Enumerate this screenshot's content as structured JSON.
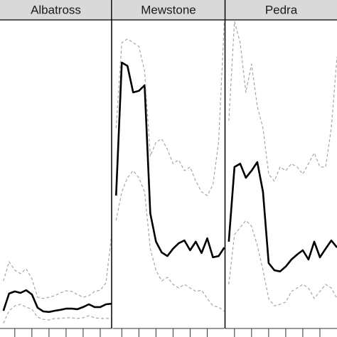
{
  "chart_data": [
    {
      "type": "line",
      "title": "Albatross",
      "x": [
        0,
        1,
        2,
        3,
        4,
        5,
        6,
        7,
        8,
        9,
        10,
        11,
        12,
        13,
        14,
        15,
        16,
        17,
        18,
        19
      ],
      "xlim": [
        -0.6,
        19
      ],
      "xticks": [
        2,
        5,
        8,
        11,
        14,
        17
      ],
      "ylim": [
        0,
        100
      ],
      "series": [
        {
          "color": "#000000",
          "dashed": false,
          "values": [
            5.3,
            10.9,
            11.6,
            11.1,
            12.0,
            10.6,
            6.3,
            5.1,
            4.9,
            5.3,
            5.6,
            6.0,
            6.0,
            5.8,
            6.5,
            7.4,
            6.5,
            6.5,
            7.4,
            7.6
          ]
        },
        {
          "color": "#a6a6a6",
          "dashed": true,
          "values": [
            15.0,
            21.3,
            18.5,
            17.4,
            19.0,
            15.7,
            9.7,
            9.3,
            9.7,
            10.2,
            11.1,
            11.8,
            11.6,
            10.6,
            9.7,
            10.2,
            11.6,
            12.0,
            14.4,
            30.1
          ]
        },
        {
          "color": "#a6a6a6",
          "dashed": true,
          "values": [
            1.2,
            5.3,
            6.9,
            7.4,
            6.5,
            5.8,
            3.2,
            2.5,
            2.3,
            2.8,
            2.8,
            3.0,
            3.0,
            2.8,
            3.0,
            3.7,
            3.0,
            2.8,
            2.8,
            2.8
          ]
        }
      ]
    },
    {
      "type": "line",
      "title": "Mewstone",
      "x": [
        0,
        1,
        2,
        3,
        4,
        5,
        6,
        7,
        8,
        9,
        10,
        11,
        12,
        13,
        14,
        15,
        16,
        17,
        18,
        19
      ],
      "xlim": [
        -0.6,
        19
      ],
      "xticks": [
        1,
        4,
        7,
        10,
        13,
        16
      ],
      "ylim": [
        0,
        100
      ],
      "series": [
        {
          "color": "#000000",
          "dashed": false,
          "values": [
            42.8,
            86.1,
            85.0,
            76.4,
            76.9,
            78.7,
            37.0,
            27.8,
            24.3,
            23.1,
            25.5,
            27.3,
            28.2,
            25.0,
            27.8,
            24.1,
            28.9,
            22.7,
            23.1,
            25.9
          ]
        },
        {
          "color": "#a6a6a6",
          "dashed": true,
          "values": [
            64.8,
            92.6,
            93.8,
            92.6,
            91.4,
            83.3,
            55.6,
            60.2,
            61.3,
            57.9,
            53.2,
            54.4,
            50.9,
            52.1,
            47.5,
            44.0,
            42.8,
            46.3,
            60.2,
            99.5
          ]
        },
        {
          "color": "#a6a6a6",
          "dashed": true,
          "values": [
            34.7,
            44.0,
            48.6,
            50.9,
            48.6,
            44.0,
            25.5,
            18.5,
            15.0,
            16.2,
            13.9,
            12.7,
            13.9,
            12.7,
            11.6,
            12.0,
            9.3,
            6.9,
            6.5,
            5.1
          ]
        }
      ]
    },
    {
      "type": "line",
      "title": "Pedra",
      "x": [
        0,
        1,
        2,
        3,
        4,
        5,
        6,
        7,
        8,
        9,
        10,
        11,
        12,
        13,
        14,
        15,
        16,
        17,
        18,
        19
      ],
      "xlim": [
        -0.6,
        19
      ],
      "xticks": [
        1,
        4,
        7,
        10,
        13,
        16
      ],
      "ylim": [
        0,
        100
      ],
      "series": [
        {
          "color": "#000000",
          "dashed": false,
          "values": [
            27.8,
            52.1,
            53.2,
            48.6,
            50.9,
            53.7,
            44.0,
            20.8,
            18.5,
            18.1,
            19.7,
            22.0,
            23.6,
            25.0,
            22.0,
            27.8,
            22.7,
            25.5,
            28.2,
            25.9
          ]
        },
        {
          "color": "#a6a6a6",
          "dashed": true,
          "values": [
            67.1,
            99.5,
            92.6,
            76.4,
            85.6,
            71.8,
            64.8,
            49.8,
            47.5,
            52.1,
            50.9,
            53.2,
            52.1,
            49.8,
            53.2,
            56.7,
            52.1,
            52.1,
            64.8,
            88.0
          ]
        },
        {
          "color": "#a6a6a6",
          "dashed": true,
          "values": [
            13.9,
            30.1,
            32.4,
            34.7,
            32.9,
            26.6,
            18.5,
            9.3,
            6.9,
            7.4,
            8.1,
            11.6,
            12.7,
            13.9,
            12.7,
            9.3,
            11.6,
            13.9,
            12.7,
            9.3
          ]
        }
      ]
    }
  ]
}
